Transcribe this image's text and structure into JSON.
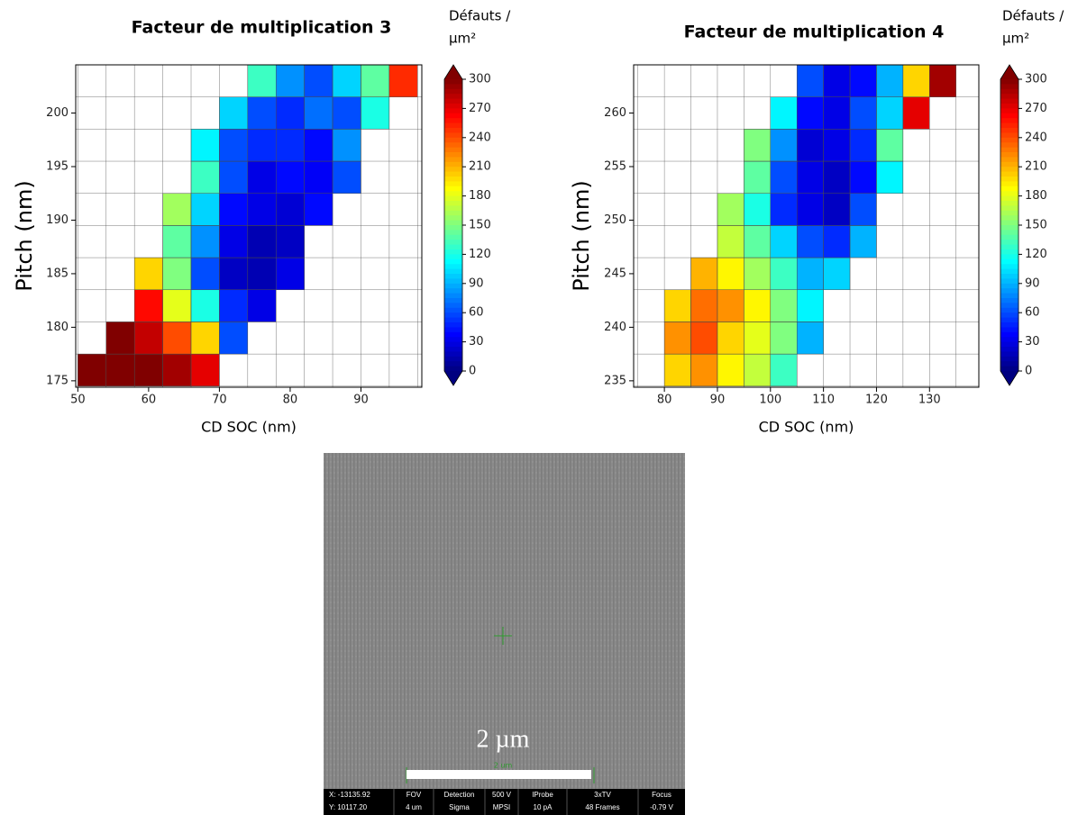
{
  "chart_data": [
    {
      "type": "heatmap",
      "title": "Facteur de multiplication 3",
      "xlabel": "CD SOC (nm)",
      "ylabel": "Pitch (nm)",
      "colorbar_label": [
        "Défauts /",
        "µm²"
      ],
      "colormap": "jet",
      "clim": [
        0,
        300
      ],
      "cticks": [
        0,
        30,
        60,
        90,
        120,
        150,
        180,
        210,
        240,
        270,
        300
      ],
      "xlim": [
        49.7,
        98.6
      ],
      "ylim": [
        174.4,
        204.5
      ],
      "xticks": [
        50,
        60,
        70,
        80,
        90
      ],
      "yticks": [
        175,
        180,
        185,
        190,
        195,
        200
      ],
      "xbins": [
        50,
        54,
        58,
        62,
        66,
        70,
        74,
        78,
        82,
        86,
        90,
        94,
        98
      ],
      "ybins": [
        174.5,
        177.5,
        180.5,
        183.5,
        186.5,
        189.5,
        192.5,
        195.5,
        198.5,
        201.5,
        204.5
      ],
      "z": [
        [
          300,
          300,
          300,
          290,
          270,
          null,
          null,
          null,
          null,
          null,
          null,
          null
        ],
        [
          null,
          300,
          280,
          240,
          200,
          60,
          null,
          null,
          null,
          null,
          null,
          null
        ],
        [
          null,
          null,
          260,
          180,
          120,
          50,
          30,
          null,
          null,
          null,
          null,
          null
        ],
        [
          null,
          null,
          200,
          150,
          60,
          20,
          15,
          30,
          null,
          null,
          null,
          null
        ],
        [
          null,
          null,
          null,
          140,
          80,
          30,
          15,
          20,
          null,
          null,
          null,
          null
        ],
        [
          null,
          null,
          null,
          160,
          100,
          40,
          30,
          25,
          40,
          null,
          null,
          null
        ],
        [
          null,
          null,
          null,
          null,
          130,
          60,
          30,
          40,
          35,
          60,
          null,
          null
        ],
        [
          null,
          null,
          null,
          null,
          110,
          60,
          50,
          50,
          40,
          80,
          null,
          null
        ],
        [
          null,
          null,
          null,
          null,
          null,
          100,
          60,
          50,
          70,
          60,
          120,
          null
        ],
        [
          null,
          null,
          null,
          null,
          null,
          null,
          130,
          80,
          60,
          100,
          140,
          250
        ]
      ]
    },
    {
      "type": "heatmap",
      "title": "Facteur de multiplication 4",
      "xlabel": "CD SOC (nm)",
      "ylabel": "Pitch (nm)",
      "colorbar_label": [
        "Défauts /",
        "µm²"
      ],
      "colormap": "jet",
      "clim": [
        0,
        300
      ],
      "cticks": [
        0,
        30,
        60,
        90,
        120,
        150,
        180,
        210,
        240,
        270,
        300
      ],
      "xlim": [
        74.2,
        139.3
      ],
      "ylim": [
        234.4,
        264.5
      ],
      "xticks": [
        80,
        90,
        100,
        110,
        120,
        130
      ],
      "yticks": [
        235,
        240,
        245,
        250,
        255,
        260
      ],
      "xbins": [
        75,
        80,
        85,
        90,
        95,
        100,
        105,
        110,
        115,
        120,
        125,
        130,
        135
      ],
      "ybins": [
        234.5,
        237.5,
        240.5,
        243.5,
        246.5,
        249.5,
        252.5,
        255.5,
        258.5,
        261.5,
        264.5
      ],
      "z": [
        [
          null,
          200,
          220,
          190,
          170,
          130,
          null,
          null,
          null,
          null,
          null,
          null
        ],
        [
          null,
          220,
          240,
          200,
          180,
          150,
          90,
          null,
          null,
          null,
          null,
          null
        ],
        [
          null,
          200,
          230,
          220,
          190,
          150,
          110,
          null,
          null,
          null,
          null,
          null
        ],
        [
          null,
          null,
          210,
          190,
          160,
          130,
          90,
          100,
          null,
          null,
          null,
          null
        ],
        [
          null,
          null,
          null,
          170,
          140,
          100,
          60,
          50,
          90,
          null,
          null,
          null
        ],
        [
          null,
          null,
          null,
          160,
          120,
          50,
          30,
          20,
          60,
          null,
          null,
          null
        ],
        [
          null,
          null,
          null,
          null,
          140,
          60,
          30,
          20,
          40,
          110,
          null,
          null
        ],
        [
          null,
          null,
          null,
          null,
          150,
          80,
          25,
          30,
          50,
          140,
          null,
          null
        ],
        [
          null,
          null,
          null,
          null,
          null,
          110,
          40,
          30,
          60,
          100,
          270,
          null
        ],
        [
          null,
          null,
          null,
          null,
          null,
          null,
          60,
          30,
          40,
          90,
          200,
          290
        ]
      ]
    }
  ],
  "sem_image": {
    "scale_label": "2 µm",
    "scale_small": "2 um",
    "status_bar": [
      [
        "X: -13135.92",
        "Y: 10117.20"
      ],
      [
        "FOV",
        "4 um"
      ],
      [
        "Detection",
        "Sigma"
      ],
      [
        "500 V",
        "MPSI"
      ],
      [
        "IProbe",
        "10 pA"
      ],
      [
        "3xTV",
        "48 Frames"
      ],
      [
        "Focus",
        "-0.79 V"
      ]
    ]
  }
}
